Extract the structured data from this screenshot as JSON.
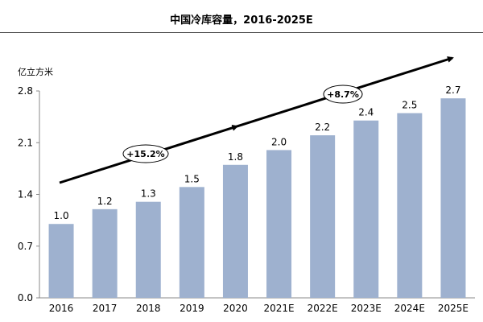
{
  "chart_data": {
    "type": "bar",
    "title": "中国冷库容量，2016-2025E",
    "ylabel": "亿立方米",
    "xlabel": "",
    "categories": [
      "2016",
      "2017",
      "2018",
      "2019",
      "2020",
      "2021E",
      "2022E",
      "2023E",
      "2024E",
      "2025E"
    ],
    "values": [
      1.0,
      1.2,
      1.3,
      1.5,
      1.8,
      2.0,
      2.2,
      2.4,
      2.5,
      2.7
    ],
    "data_labels": [
      "1.0",
      "1.2",
      "1.3",
      "1.5",
      "1.8",
      "2.0",
      "2.2",
      "2.4",
      "2.5",
      "2.7"
    ],
    "ylim": [
      0,
      2.8
    ],
    "yticks": [
      0.0,
      0.7,
      1.4,
      2.1,
      2.8
    ],
    "ytick_labels": [
      "0.0",
      "0.7",
      "1.4",
      "2.1",
      "2.8"
    ],
    "grid": false,
    "bar_color": "#9eb1cf",
    "annotations": [
      {
        "text": "+15.2%",
        "period": [
          "2016",
          "2020"
        ]
      },
      {
        "text": "+8.7%",
        "period": [
          "2020",
          "2025E"
        ]
      }
    ]
  }
}
